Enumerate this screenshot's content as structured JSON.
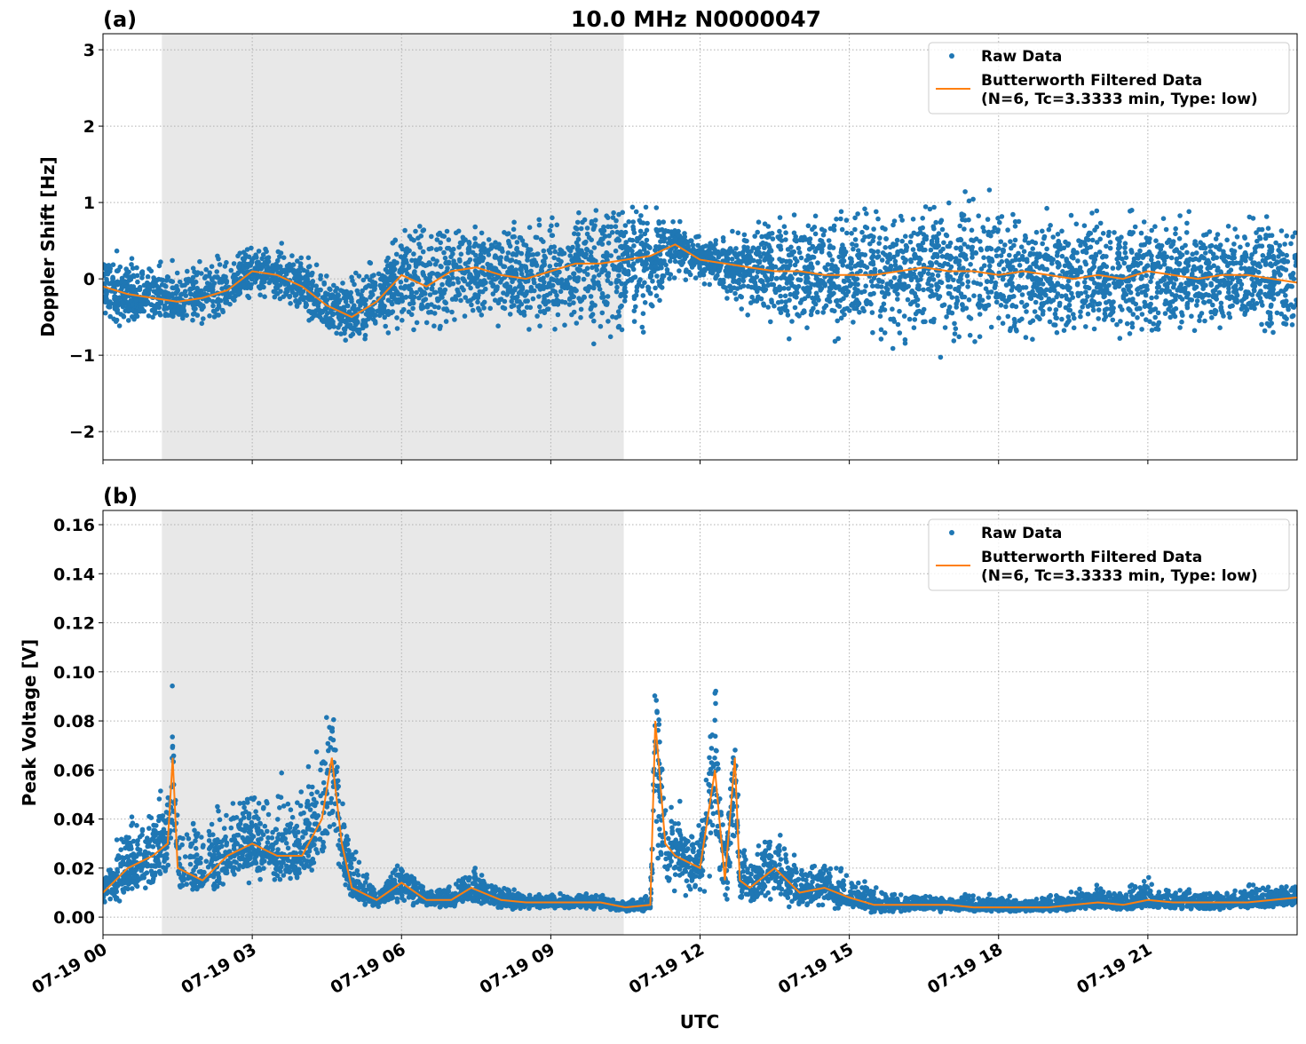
{
  "chart_data": [
    {
      "type": "scatter",
      "panel_label": "(a)",
      "title": "10.0 MHz N0000047",
      "xlabel": "",
      "ylabel": "Doppler Shift [Hz]",
      "date": "07-19",
      "xlim": [
        "00:00",
        "24:00"
      ],
      "ylim": [
        -2.37,
        3.21
      ],
      "yticks": [
        -2,
        -1,
        0,
        1,
        2,
        3
      ],
      "ytick_labels": [
        "−2",
        "−1",
        "0",
        "1",
        "2",
        "3"
      ],
      "grid": true,
      "shaded_span": [
        "01:11",
        "10:28"
      ],
      "legend": {
        "placement": "top-right",
        "entries": [
          "Raw Data",
          "Butterworth Filtered Data",
          "(N=6, Tc=3.3333 min, Type: low)"
        ]
      },
      "series": [
        {
          "name": "Raw Data",
          "kind": "scatter",
          "color": "#1f77b4",
          "x": [
            "00:00",
            "00:30",
            "01:00",
            "01:30",
            "02:00",
            "02:30",
            "03:00",
            "03:30",
            "04:00",
            "04:30",
            "05:00",
            "05:30",
            "06:00",
            "06:30",
            "07:00",
            "07:30",
            "08:00",
            "08:30",
            "09:00",
            "09:30",
            "10:00",
            "10:30",
            "11:00",
            "11:30",
            "12:00",
            "12:30",
            "13:00",
            "13:30",
            "14:00",
            "14:30",
            "15:00",
            "15:30",
            "16:00",
            "16:30",
            "17:00",
            "17:30",
            "18:00",
            "18:30",
            "19:00",
            "19:30",
            "20:00",
            "20:30",
            "21:00",
            "21:30",
            "22:00",
            "22:30",
            "23:00",
            "23:30",
            "24:00"
          ],
          "lower": [
            -0.7,
            -0.7,
            -0.7,
            -0.7,
            -0.7,
            -0.5,
            -0.3,
            -0.4,
            -0.6,
            -0.9,
            -1.0,
            -0.8,
            -0.9,
            -1.0,
            -0.8,
            -0.7,
            -0.8,
            -0.8,
            -0.9,
            -0.9,
            -1.0,
            -1.0,
            -0.9,
            -0.1,
            -0.1,
            -0.3,
            -0.6,
            -0.8,
            -0.9,
            -0.9,
            -1.0,
            -1.0,
            -1.1,
            -1.1,
            -1.1,
            -1.1,
            -1.1,
            -1.0,
            -1.0,
            -1.0,
            -0.9,
            -0.9,
            -1.0,
            -0.9,
            -0.9,
            -0.9,
            -0.9,
            -1.0,
            -1.0
          ],
          "upper": [
            0.5,
            0.4,
            0.3,
            0.3,
            0.4,
            0.4,
            0.6,
            0.5,
            0.4,
            0.2,
            0.2,
            0.5,
            0.8,
            0.9,
            0.9,
            0.9,
            0.8,
            0.9,
            1.0,
            1.1,
            1.2,
            1.2,
            1.1,
            0.8,
            0.6,
            0.6,
            0.9,
            1.0,
            1.0,
            1.1,
            1.1,
            1.2,
            1.3,
            1.3,
            1.3,
            1.3,
            1.3,
            1.2,
            1.2,
            1.1,
            1.1,
            1.1,
            1.1,
            1.0,
            1.0,
            1.0,
            1.0,
            1.0,
            1.0
          ]
        },
        {
          "name": "Butterworth Filtered Data (N=6, Tc=3.3333 min, Type: low)",
          "kind": "line",
          "color": "#ff7f0e",
          "x": [
            "00:00",
            "00:30",
            "01:00",
            "01:30",
            "02:00",
            "02:30",
            "03:00",
            "03:30",
            "04:00",
            "04:30",
            "05:00",
            "05:30",
            "06:00",
            "06:30",
            "07:00",
            "07:30",
            "08:00",
            "08:30",
            "09:00",
            "09:30",
            "10:00",
            "10:30",
            "11:00",
            "11:30",
            "12:00",
            "12:30",
            "13:00",
            "13:30",
            "14:00",
            "14:30",
            "15:00",
            "15:30",
            "16:00",
            "16:30",
            "17:00",
            "17:30",
            "18:00",
            "18:30",
            "19:00",
            "19:30",
            "20:00",
            "20:30",
            "21:00",
            "21:30",
            "22:00",
            "22:30",
            "23:00",
            "23:30",
            "24:00"
          ],
          "y": [
            -0.1,
            -0.2,
            -0.25,
            -0.3,
            -0.25,
            -0.15,
            0.1,
            0.05,
            -0.1,
            -0.35,
            -0.5,
            -0.3,
            0.05,
            -0.1,
            0.1,
            0.15,
            0.05,
            0.0,
            0.1,
            0.2,
            0.2,
            0.25,
            0.3,
            0.45,
            0.25,
            0.2,
            0.15,
            0.1,
            0.1,
            0.05,
            0.05,
            0.05,
            0.1,
            0.15,
            0.1,
            0.1,
            0.05,
            0.1,
            0.05,
            0.0,
            0.05,
            0.0,
            0.1,
            0.05,
            0.0,
            0.05,
            0.05,
            0.0,
            -0.05
          ]
        }
      ]
    },
    {
      "type": "scatter",
      "panel_label": "(b)",
      "title": "",
      "xlabel": "UTC",
      "ylabel": "Peak Voltage [V]",
      "date": "07-19",
      "xlim": [
        "00:00",
        "24:00"
      ],
      "ylim": [
        -0.0072,
        0.1658
      ],
      "yticks": [
        0,
        0.02,
        0.04,
        0.06,
        0.08,
        0.1,
        0.12,
        0.14,
        0.16
      ],
      "ytick_labels": [
        "0.00",
        "0.02",
        "0.04",
        "0.06",
        "0.08",
        "0.10",
        "0.12",
        "0.14",
        "0.16"
      ],
      "xticks": [
        "00:00",
        "03:00",
        "06:00",
        "09:00",
        "12:00",
        "15:00",
        "18:00",
        "21:00"
      ],
      "xtick_labels": [
        "07-19 00",
        "07-19 03",
        "07-19 06",
        "07-19 09",
        "07-19 12",
        "07-19 15",
        "07-19 18",
        "07-19 21"
      ],
      "grid": true,
      "shaded_span": [
        "01:11",
        "10:28"
      ],
      "legend": {
        "placement": "top-right",
        "entries": [
          "Raw Data",
          "Butterworth Filtered Data",
          "(N=6, Tc=3.3333 min, Type: low)"
        ]
      },
      "series": [
        {
          "name": "Raw Data",
          "kind": "scatter",
          "color": "#1f77b4",
          "x": [
            "00:00",
            "00:30",
            "01:00",
            "01:18",
            "01:24",
            "01:30",
            "02:00",
            "02:30",
            "03:00",
            "03:30",
            "04:00",
            "04:24",
            "04:36",
            "04:48",
            "05:00",
            "05:30",
            "06:00",
            "06:30",
            "07:00",
            "07:24",
            "08:00",
            "08:30",
            "09:00",
            "09:30",
            "10:00",
            "10:30",
            "11:00",
            "11:06",
            "11:18",
            "11:30",
            "12:00",
            "12:18",
            "12:30",
            "12:42",
            "12:48",
            "13:00",
            "13:30",
            "14:00",
            "14:30",
            "15:00",
            "15:30",
            "16:00",
            "16:30",
            "17:00",
            "17:30",
            "18:00",
            "18:30",
            "19:00",
            "19:30",
            "20:00",
            "20:30",
            "21:00",
            "21:30",
            "22:00",
            "22:30",
            "23:00",
            "23:30",
            "24:00"
          ],
          "lower": [
            0.004,
            0.005,
            0.006,
            0.008,
            0.01,
            0.008,
            0.008,
            0.01,
            0.01,
            0.01,
            0.01,
            0.012,
            0.012,
            0.01,
            0.005,
            0.003,
            0.004,
            0.003,
            0.003,
            0.004,
            0.003,
            0.003,
            0.003,
            0.003,
            0.003,
            0.002,
            0.002,
            0.01,
            0.008,
            0.006,
            0.005,
            0.008,
            0.004,
            0.006,
            0.004,
            0.003,
            0.004,
            0.003,
            0.003,
            0.002,
            0.001,
            0.002,
            0.002,
            0.002,
            0.002,
            0.001,
            0.002,
            0.002,
            0.002,
            0.003,
            0.002,
            0.003,
            0.002,
            0.002,
            0.002,
            0.003,
            0.003,
            0.003
          ],
          "upper": [
            0.02,
            0.045,
            0.05,
            0.06,
            0.1,
            0.05,
            0.05,
            0.05,
            0.06,
            0.06,
            0.06,
            0.08,
            0.11,
            0.06,
            0.035,
            0.013,
            0.025,
            0.012,
            0.014,
            0.025,
            0.014,
            0.01,
            0.01,
            0.01,
            0.01,
            0.007,
            0.01,
            0.11,
            0.06,
            0.05,
            0.04,
            0.11,
            0.04,
            0.085,
            0.04,
            0.03,
            0.04,
            0.025,
            0.028,
            0.02,
            0.015,
            0.012,
            0.01,
            0.01,
            0.01,
            0.01,
            0.01,
            0.012,
            0.012,
            0.015,
            0.012,
            0.02,
            0.012,
            0.012,
            0.012,
            0.015,
            0.015,
            0.015
          ]
        },
        {
          "name": "Butterworth Filtered Data (N=6, Tc=3.3333 min, Type: low)",
          "kind": "line",
          "color": "#ff7f0e",
          "x": [
            "00:00",
            "00:30",
            "01:00",
            "01:18",
            "01:24",
            "01:30",
            "02:00",
            "02:30",
            "03:00",
            "03:30",
            "04:00",
            "04:24",
            "04:36",
            "04:48",
            "05:00",
            "05:30",
            "06:00",
            "06:30",
            "07:00",
            "07:24",
            "08:00",
            "08:30",
            "09:00",
            "09:30",
            "10:00",
            "10:30",
            "11:00",
            "11:06",
            "11:18",
            "11:30",
            "12:00",
            "12:18",
            "12:30",
            "12:42",
            "12:48",
            "13:00",
            "13:30",
            "14:00",
            "14:30",
            "15:00",
            "15:30",
            "16:00",
            "16:30",
            "17:00",
            "17:30",
            "18:00",
            "18:30",
            "19:00",
            "19:30",
            "20:00",
            "20:30",
            "21:00",
            "21:30",
            "22:00",
            "22:30",
            "23:00",
            "23:30",
            "24:00"
          ],
          "y": [
            0.01,
            0.02,
            0.025,
            0.03,
            0.065,
            0.02,
            0.015,
            0.025,
            0.03,
            0.025,
            0.025,
            0.04,
            0.065,
            0.03,
            0.012,
            0.007,
            0.014,
            0.007,
            0.007,
            0.012,
            0.007,
            0.006,
            0.006,
            0.006,
            0.006,
            0.004,
            0.005,
            0.08,
            0.03,
            0.025,
            0.02,
            0.06,
            0.015,
            0.065,
            0.015,
            0.012,
            0.02,
            0.01,
            0.012,
            0.008,
            0.005,
            0.005,
            0.005,
            0.005,
            0.004,
            0.004,
            0.004,
            0.004,
            0.005,
            0.006,
            0.005,
            0.007,
            0.006,
            0.006,
            0.006,
            0.006,
            0.007,
            0.008
          ]
        }
      ]
    }
  ]
}
